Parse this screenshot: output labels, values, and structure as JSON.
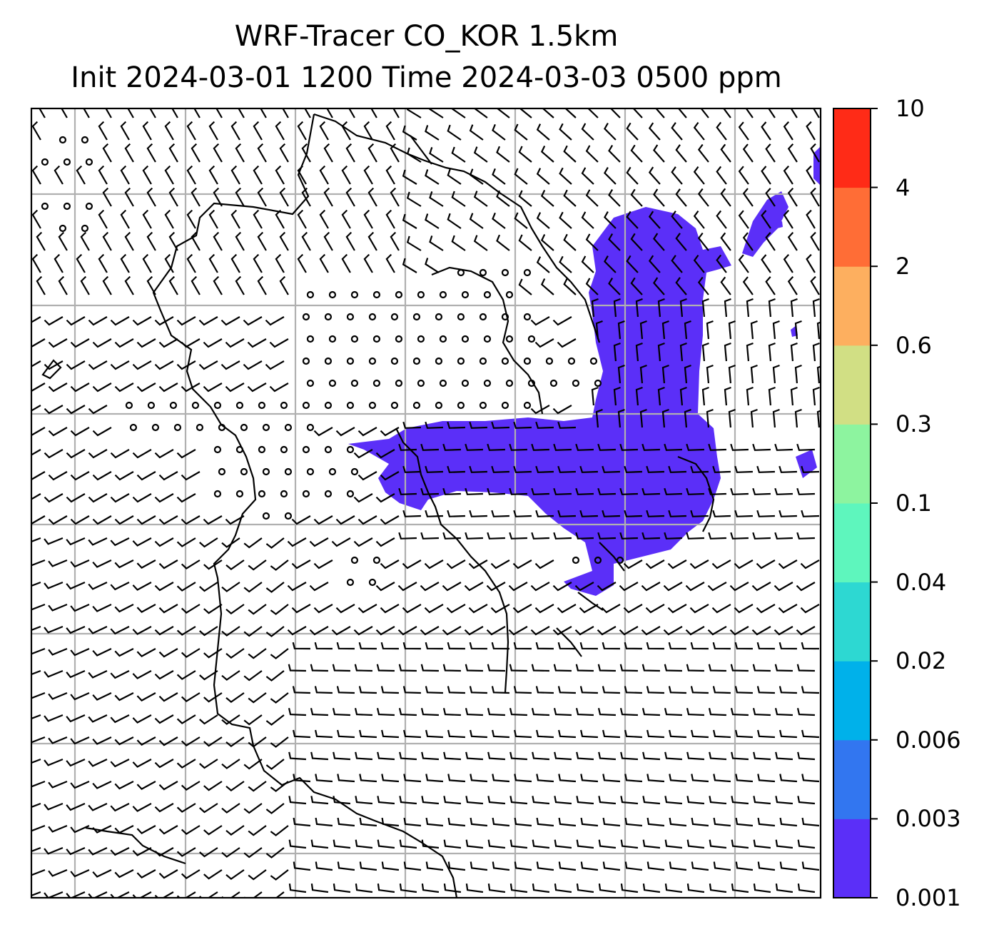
{
  "title": {
    "line1": "WRF-Tracer CO_KOR 1.5km",
    "line2": "Init 2024-03-01 1200 Time 2024-03-03 0500 ppm"
  },
  "colorbar": {
    "levels": [
      {
        "value": "0.001",
        "color": "#5b2ff8"
      },
      {
        "value": "0.003",
        "color": "#3276f0"
      },
      {
        "value": "0.006",
        "color": "#00b1ea"
      },
      {
        "value": "0.02",
        "color": "#2dd8d2"
      },
      {
        "value": "0.04",
        "color": "#5ef6bd"
      },
      {
        "value": "0.1",
        "color": "#8df49f"
      },
      {
        "value": "0.3",
        "color": "#d1df84"
      },
      {
        "value": "0.6",
        "color": "#fdaf5f"
      },
      {
        "value": "2",
        "color": "#ff6d36"
      },
      {
        "value": "4",
        "color": "#ff2b17"
      },
      {
        "value": "10",
        "color": null
      }
    ]
  },
  "map": {
    "plume_color": "#5b2ff8",
    "gridline_color": "#b0b0b0",
    "coastline_color": "#000000",
    "barb_color": "#000000"
  }
}
